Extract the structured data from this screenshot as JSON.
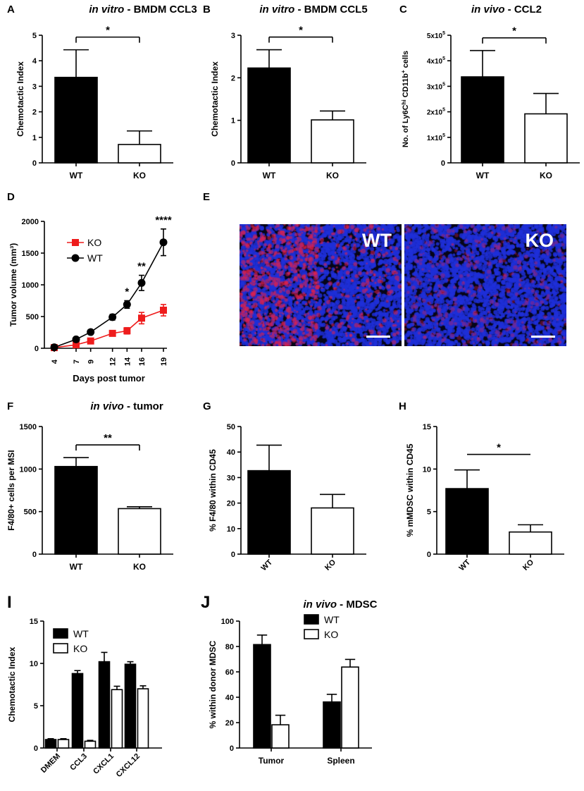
{
  "chart_data": [
    {
      "panel": "A",
      "type": "bar",
      "title_italic": "in vitro",
      "title_rest": " - BMDM CCL3",
      "categories": [
        "WT",
        "KO"
      ],
      "values": [
        3.35,
        0.72
      ],
      "errors": [
        1.08,
        0.53
      ],
      "fills": [
        "#000000",
        "#ffffff"
      ],
      "ylabel": "Chemotactic Index",
      "ylim": [
        0,
        5
      ],
      "ticks": [
        0,
        1,
        2,
        3,
        4,
        5
      ],
      "tick_labels": [
        "0",
        "1",
        "2",
        "3",
        "4",
        "5"
      ],
      "significance": "*"
    },
    {
      "panel": "B",
      "type": "bar",
      "title_italic": "in vitro",
      "title_rest": " - BMDM CCL5",
      "categories": [
        "WT",
        "KO"
      ],
      "values": [
        2.23,
        1.01
      ],
      "errors": [
        0.43,
        0.21
      ],
      "fills": [
        "#000000",
        "#ffffff"
      ],
      "ylabel": "Chemotactic Index",
      "ylim": [
        0,
        3
      ],
      "ticks": [
        0,
        1,
        2,
        3
      ],
      "tick_labels": [
        "0",
        "1",
        "2",
        "3"
      ],
      "significance": "*"
    },
    {
      "panel": "C",
      "type": "bar",
      "title_italic": "in vivo",
      "title_rest": " - CCL2",
      "categories": [
        "WT",
        "KO"
      ],
      "values": [
        337000,
        192000
      ],
      "errors": [
        103000,
        80000
      ],
      "fills": [
        "#000000",
        "#ffffff"
      ],
      "ylabel": "No. of Ly6Chi CD11b+ cells",
      "ylim": [
        0,
        500000
      ],
      "ticks": [
        0,
        100000,
        200000,
        300000,
        400000,
        500000
      ],
      "tick_labels": [
        "0",
        "1x10⁵",
        "2x10⁵",
        "3x10⁵",
        "4x10⁵",
        "5x10⁵"
      ],
      "significance": "*"
    },
    {
      "panel": "D",
      "type": "line",
      "x": [
        4,
        7,
        9,
        12,
        14,
        16,
        19
      ],
      "series": [
        {
          "name": "KO",
          "values": [
            10,
            55,
            115,
            235,
            275,
            475,
            600
          ],
          "errors": [
            8,
            15,
            25,
            40,
            50,
            90,
            90
          ],
          "color": "#ee1c1c",
          "marker": "square"
        },
        {
          "name": "WT",
          "values": [
            15,
            140,
            255,
            490,
            690,
            1030,
            1670
          ],
          "errors": [
            10,
            20,
            30,
            45,
            60,
            120,
            210
          ],
          "color": "#000000",
          "marker": "circle"
        }
      ],
      "ylabel": "Tumor volume (mm³)",
      "xlabel": "Days post tumor",
      "ylim": [
        0,
        2000
      ],
      "ticks": [
        0,
        500,
        1000,
        1500,
        2000
      ],
      "tick_labels": [
        "0",
        "500",
        "1000",
        "1500",
        "2000"
      ],
      "significance": [
        {
          "x": 14,
          "label": "*"
        },
        {
          "x": 16,
          "label": "**"
        },
        {
          "x": 19,
          "label": "****"
        }
      ]
    },
    {
      "panel": "F",
      "type": "bar",
      "title_italic": "in vivo",
      "title_rest": " - tumor",
      "categories": [
        "WT",
        "KO"
      ],
      "values": [
        1030,
        535
      ],
      "errors": [
        105,
        22
      ],
      "fills": [
        "#000000",
        "#ffffff"
      ],
      "ylabel": "F4/80+ cells per MSI",
      "ylim": [
        0,
        1500
      ],
      "ticks": [
        0,
        500,
        1000,
        1500
      ],
      "tick_labels": [
        "0",
        "500",
        "1000",
        "1500"
      ],
      "significance": "**"
    },
    {
      "panel": "G",
      "type": "bar",
      "categories": [
        "WT",
        "KO"
      ],
      "values": [
        32.7,
        18.1
      ],
      "errors": [
        10.0,
        5.3
      ],
      "fills": [
        "#000000",
        "#ffffff"
      ],
      "ylabel": "% F4/80 within CD45",
      "ylim": [
        0,
        50
      ],
      "ticks": [
        0,
        10,
        20,
        30,
        40,
        50
      ],
      "tick_labels": [
        "0",
        "10",
        "20",
        "30",
        "40",
        "50"
      ]
    },
    {
      "panel": "H",
      "type": "bar",
      "categories": [
        "WT",
        "KO"
      ],
      "values": [
        7.7,
        2.6
      ],
      "errors": [
        2.2,
        0.85
      ],
      "fills": [
        "#000000",
        "#ffffff"
      ],
      "ylabel": "% mMDSC within CD45",
      "ylim": [
        0,
        15
      ],
      "ticks": [
        0,
        5,
        10,
        15
      ],
      "tick_labels": [
        "0",
        "5",
        "10",
        "15"
      ],
      "significance": "*"
    },
    {
      "panel": "I",
      "type": "bar",
      "categories": [
        "DMEM",
        "CCL3",
        "CXCL1",
        "CXCL12"
      ],
      "series": [
        {
          "name": "WT",
          "values": [
            1.0,
            8.8,
            10.2,
            9.9
          ],
          "errors": [
            0.1,
            0.35,
            1.1,
            0.3
          ],
          "fill": "#000000"
        },
        {
          "name": "KO",
          "values": [
            1.0,
            0.8,
            6.9,
            7.0
          ],
          "errors": [
            0.1,
            0.1,
            0.4,
            0.35
          ],
          "fill": "#ffffff"
        }
      ],
      "ylabel": "Chemotactic Index",
      "ylim": [
        0,
        15
      ],
      "ticks": [
        0,
        5,
        10,
        15
      ],
      "tick_labels": [
        "0",
        "5",
        "10",
        "15"
      ]
    },
    {
      "panel": "J",
      "type": "bar",
      "title_italic": "in vivo",
      "title_rest": " - MDSC",
      "categories": [
        "Tumor",
        "Spleen"
      ],
      "series": [
        {
          "name": "WT",
          "values": [
            81.5,
            36.3
          ],
          "errors": [
            7.5,
            6.0
          ],
          "fill": "#000000"
        },
        {
          "name": "KO",
          "values": [
            18.3,
            63.8
          ],
          "errors": [
            7.5,
            6.0
          ],
          "fill": "#ffffff"
        }
      ],
      "ylabel": "% within donor MDSC",
      "ylim": [
        0,
        100
      ],
      "ticks": [
        0,
        20,
        40,
        60,
        80,
        100
      ],
      "tick_labels": [
        "0",
        "20",
        "40",
        "60",
        "80",
        "100"
      ]
    }
  ],
  "panel_e": {
    "letter": "E",
    "images": [
      {
        "label": "WT"
      },
      {
        "label": "KO"
      }
    ],
    "colors": {
      "nuclei": "#1e2fd8",
      "stain": "#e0204a",
      "background": "#050518"
    }
  }
}
